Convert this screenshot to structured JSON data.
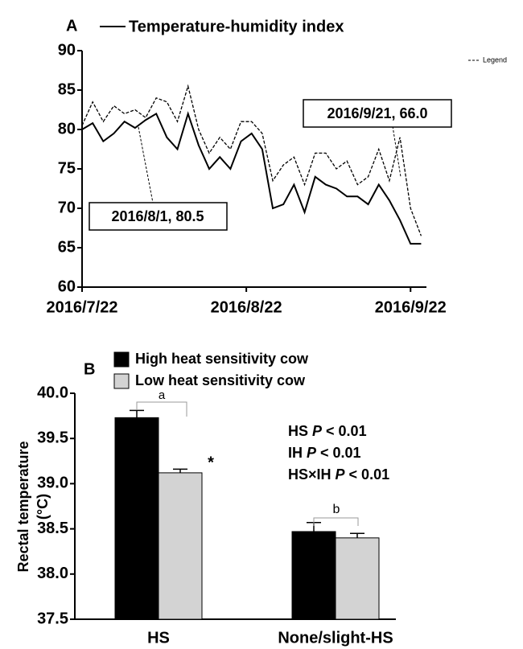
{
  "chart_data": [
    {
      "type": "line",
      "panel": "A",
      "title": "Temperature-humidity index",
      "x": [
        "2016/7/22",
        "2016/7/24",
        "2016/7/26",
        "2016/7/28",
        "2016/7/30",
        "2016/8/1",
        "2016/8/3",
        "2016/8/5",
        "2016/8/7",
        "2016/8/9",
        "2016/8/11",
        "2016/8/13",
        "2016/8/15",
        "2016/8/17",
        "2016/8/19",
        "2016/8/21",
        "2016/8/23",
        "2016/8/25",
        "2016/8/27",
        "2016/8/29",
        "2016/8/31",
        "2016/9/2",
        "2016/9/4",
        "2016/9/6",
        "2016/9/8",
        "2016/9/10",
        "2016/9/12",
        "2016/9/14",
        "2016/9/16",
        "2016/9/18",
        "2016/9/20",
        "2016/9/22",
        "2016/9/24"
      ],
      "series": [
        {
          "name": "Temperature-humidity index",
          "color": "#000000",
          "dash": false,
          "values": [
            80,
            80.8,
            78.5,
            79.5,
            81,
            80.2,
            81.2,
            82,
            79,
            77.5,
            82,
            78,
            75,
            76.5,
            75,
            78.5,
            79.5,
            77.5,
            70,
            70.5,
            73,
            69.5,
            74,
            73,
            72.5,
            71.5,
            71.5,
            70.5,
            73,
            71,
            68.5,
            65.5,
            65.5
          ]
        },
        {
          "name": "Legend",
          "color": "#000000",
          "dash": true,
          "values": [
            80.5,
            83.5,
            81,
            83,
            82,
            82.5,
            81.5,
            84,
            83.5,
            81,
            85.5,
            80,
            77,
            79,
            77.5,
            81,
            81,
            79.5,
            73.5,
            75.5,
            76.5,
            73,
            77,
            77,
            75,
            76,
            73,
            74,
            77.5,
            73.5,
            79,
            70,
            66.5
          ]
        }
      ],
      "annotations": [
        "2016/8/1, 80.5",
        "2016/9/21, 66.0"
      ],
      "xlim": [
        "2016/7/22",
        "2016/9/25"
      ],
      "xticks": [
        "2016/7/22",
        "2016/8/22",
        "2016/9/22"
      ],
      "ylim": [
        60,
        90
      ],
      "yticks": [
        60,
        65,
        70,
        75,
        80,
        85,
        90
      ]
    },
    {
      "type": "bar",
      "panel": "B",
      "ylabel_lines": [
        "Rectal temperature",
        "(°C)"
      ],
      "categories": [
        "HS",
        "None/slight-HS"
      ],
      "series": [
        {
          "name": "High heat sensitivity cow",
          "color": "#000000",
          "values": [
            39.73,
            38.47
          ],
          "errors": [
            0.08,
            0.1
          ]
        },
        {
          "name": "Low heat sensitivity cow",
          "color": "#d3d3d3",
          "values": [
            39.12,
            38.4
          ],
          "errors": [
            0.04,
            0.05
          ]
        }
      ],
      "annotations": [
        "a",
        "b",
        "*"
      ],
      "stats": [
        {
          "term": "HS",
          "stat": "P",
          "text": "< 0.01"
        },
        {
          "term": "IH",
          "stat": "P",
          "text": "< 0.01"
        },
        {
          "term": "HS×IH",
          "stat": "P",
          "text": "< 0.01"
        }
      ],
      "ylim": [
        37.5,
        40.0
      ],
      "yticks": [
        37.5,
        {
          "value": 38,
          "label": "38.0"
        },
        38.5,
        {
          "value": 39,
          "label": "39.0"
        },
        39.5,
        {
          "value": 40,
          "label": "40.0"
        }
      ]
    }
  ]
}
